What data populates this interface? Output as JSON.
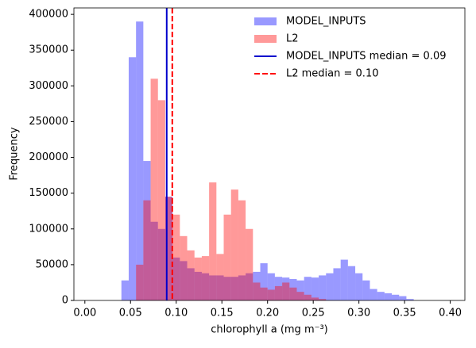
{
  "chart_data": {
    "type": "histogram",
    "xlabel": "chlorophyll a (mg m⁻³)",
    "ylabel": "Frequency",
    "bins": [
      0,
      0.008,
      0.016,
      0.024,
      0.032,
      0.04,
      0.048,
      0.056,
      0.064,
      0.072,
      0.08,
      0.088,
      0.096,
      0.104,
      0.112,
      0.12,
      0.128,
      0.136,
      0.144,
      0.152,
      0.16,
      0.168,
      0.176,
      0.184,
      0.192,
      0.2,
      0.208,
      0.216,
      0.224,
      0.232,
      0.24,
      0.248,
      0.256,
      0.264,
      0.272,
      0.28,
      0.288,
      0.296,
      0.304,
      0.312,
      0.32,
      0.328,
      0.336,
      0.344,
      0.352,
      0.36,
      0.368,
      0.376,
      0.384,
      0.392,
      0.4
    ],
    "series": [
      {
        "name": "MODEL_INPUTS",
        "color": "blue",
        "alpha": 0.4,
        "values": [
          0,
          0,
          0,
          0,
          0,
          28000,
          340000,
          390000,
          195000,
          110000,
          100000,
          145000,
          60000,
          55000,
          45000,
          40000,
          38000,
          35000,
          35000,
          33000,
          33000,
          35000,
          38000,
          40000,
          52000,
          38000,
          33000,
          32000,
          30000,
          28000,
          33000,
          32000,
          35000,
          38000,
          45000,
          57000,
          48000,
          38000,
          28000,
          16000,
          12000,
          10000,
          8000,
          6000,
          2000,
          0,
          0,
          0,
          0,
          0
        ]
      },
      {
        "name": "L2",
        "color": "red",
        "alpha": 0.4,
        "values": [
          0,
          0,
          0,
          0,
          0,
          0,
          0,
          50000,
          140000,
          310000,
          280000,
          145000,
          120000,
          90000,
          70000,
          60000,
          62000,
          165000,
          65000,
          120000,
          155000,
          140000,
          100000,
          25000,
          18000,
          15000,
          20000,
          25000,
          18000,
          12000,
          8000,
          4000,
          2000,
          0,
          0,
          0,
          0,
          0,
          0,
          0,
          0,
          0,
          0,
          0,
          0,
          0,
          0,
          0,
          0,
          0
        ]
      }
    ],
    "lines": [
      {
        "name": "MODEL_INPUTS median = 0.09",
        "color": "#0000cc",
        "style": "solid",
        "x": 0.0896
      },
      {
        "name": "L2 median = 0.10",
        "color": "red",
        "style": "dashed",
        "x": 0.0957
      }
    ],
    "xlim": [
      -0.012,
      0.416
    ],
    "ylim": [
      0,
      409000
    ],
    "xticks": [
      {
        "value": 0,
        "label": "0.00"
      },
      {
        "value": 0.05,
        "label": "0.05"
      },
      {
        "value": 0.1,
        "label": "0.10"
      },
      {
        "value": 0.15,
        "label": "0.15"
      },
      {
        "value": 0.2,
        "label": "0.20"
      },
      {
        "value": 0.25,
        "label": "0.25"
      },
      {
        "value": 0.3,
        "label": "0.30"
      },
      {
        "value": 0.35,
        "label": "0.35"
      },
      {
        "value": 0.4,
        "label": "0.40"
      }
    ],
    "yticks": [
      0,
      50000,
      100000,
      150000,
      200000,
      250000,
      300000,
      350000,
      400000
    ],
    "legend": "upper right"
  }
}
